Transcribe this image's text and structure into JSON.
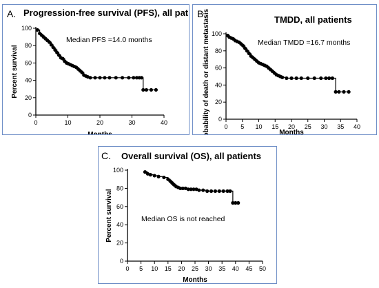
{
  "chart_data": [
    {
      "type": "line",
      "panel_label": "A.",
      "title": "Progression-free survival (PFS), all patients",
      "xlabel": "Months",
      "ylabel": "Percent survival",
      "annotation": "Median PFS =14.0 months",
      "xlim": [
        0,
        40
      ],
      "ylim": [
        0,
        100
      ],
      "xticks": [
        0,
        10,
        20,
        30,
        40
      ],
      "yticks": [
        0,
        20,
        40,
        60,
        80,
        100
      ],
      "grid": false,
      "series": [
        {
          "x": [
            0.5,
            1.2,
            1.8,
            2.4,
            3.0,
            3.6,
            4.2,
            4.8,
            5.4,
            6.0,
            6.6,
            7.2,
            7.8,
            8.4,
            9.0,
            9.6,
            10.2,
            10.8,
            11.4,
            12.0,
            12.6,
            13.2,
            13.8,
            14.4,
            15.0,
            15.6,
            16.2,
            17.0,
            18.5,
            20.0,
            21.5,
            23.0,
            25.0,
            27.0,
            29.0,
            30.5,
            31.5,
            32.3,
            33.0,
            33.5,
            34.5,
            36.0,
            37.5
          ],
          "y": [
            98,
            94,
            92,
            90,
            88,
            86,
            84,
            81,
            78,
            75,
            72,
            69,
            66,
            65,
            62,
            60,
            59,
            58,
            57,
            56,
            55,
            53,
            51,
            49,
            46,
            45,
            44,
            43,
            43,
            43,
            43,
            43,
            43,
            43,
            43,
            43,
            43,
            43,
            43,
            29,
            29,
            29,
            29
          ],
          "censored_shown_as_markers": true
        }
      ]
    },
    {
      "type": "line",
      "panel_label": "B.",
      "title": "TMDD, all patients",
      "xlabel": "Months",
      "ylabel": "Probability of death or distant metastasis",
      "annotation": "Median TMDD =16.7 months",
      "xlim": [
        0,
        40
      ],
      "ylim": [
        0,
        100
      ],
      "xticks": [
        0,
        5,
        10,
        15,
        20,
        25,
        30,
        35,
        40
      ],
      "yticks": [
        0,
        20,
        40,
        60,
        80,
        100
      ],
      "grid": false,
      "series": [
        {
          "x": [
            0.5,
            1.0,
            1.6,
            2.2,
            2.8,
            3.4,
            4.0,
            4.6,
            5.2,
            5.8,
            6.4,
            7.0,
            7.6,
            8.2,
            8.8,
            9.4,
            10.0,
            10.6,
            11.2,
            11.8,
            12.4,
            13.0,
            13.6,
            14.2,
            14.8,
            15.4,
            16.0,
            16.6,
            17.2,
            18.5,
            20.0,
            21.5,
            23.0,
            25.0,
            27.0,
            29.0,
            30.5,
            31.5,
            32.5,
            33.5,
            34.5,
            36.0,
            37.5
          ],
          "y": [
            98,
            96,
            95,
            94,
            92,
            91,
            90,
            88,
            86,
            83,
            80,
            77,
            74,
            72,
            70,
            68,
            66,
            65,
            64,
            63,
            62,
            60,
            58,
            56,
            54,
            52,
            51,
            50,
            49,
            48,
            48,
            48,
            48,
            48,
            48,
            48,
            48,
            48,
            48,
            32,
            32,
            32,
            32
          ],
          "censored_shown_as_markers": true
        }
      ]
    },
    {
      "type": "line",
      "panel_label": "C.",
      "title": "Overall survival (OS), all patients",
      "xlabel": "Months",
      "ylabel": "Percent survival",
      "annotation": "Median OS is not reached",
      "xlim": [
        0,
        50
      ],
      "ylim": [
        0,
        100
      ],
      "xticks": [
        0,
        5,
        10,
        15,
        20,
        25,
        30,
        35,
        40,
        45,
        50
      ],
      "yticks": [
        0,
        20,
        40,
        60,
        80,
        100
      ],
      "grid": false,
      "series": [
        {
          "x": [
            6.5,
            7.5,
            8.5,
            10.0,
            11.5,
            13.5,
            15.0,
            15.8,
            16.5,
            17.2,
            18.0,
            18.8,
            19.6,
            20.5,
            21.5,
            22.5,
            23.5,
            24.5,
            25.5,
            26.5,
            28.0,
            29.5,
            31.0,
            32.5,
            34.0,
            35.5,
            37.0,
            38.0,
            39.0,
            40.0,
            41.0
          ],
          "y": [
            98,
            96,
            95,
            94,
            93,
            92,
            90,
            88,
            86,
            84,
            82,
            81,
            80,
            80,
            80,
            79,
            79,
            79,
            79,
            78,
            78,
            77,
            77,
            77,
            77,
            77,
            77,
            77,
            64,
            64,
            64
          ],
          "censored_shown_as_markers": true
        }
      ]
    }
  ]
}
